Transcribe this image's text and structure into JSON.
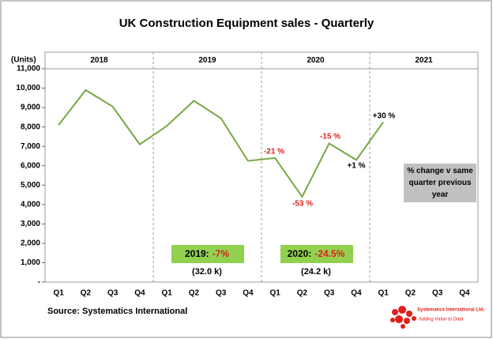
{
  "chart_data": {
    "type": "line",
    "title": "UK Construction  Equipment sales - Quarterly",
    "y_axis_label": "(Units)",
    "year_labels": [
      "2018",
      "2019",
      "2020",
      "2021"
    ],
    "categories": [
      "Q1",
      "Q2",
      "Q3",
      "Q4",
      "Q1",
      "Q2",
      "Q3",
      "Q4",
      "Q1",
      "Q2",
      "Q3",
      "Q4",
      "Q1",
      "Q2",
      "Q3",
      "Q4"
    ],
    "color": "#77a843",
    "values": [
      8100,
      9900,
      9050,
      7100,
      8050,
      9350,
      8450,
      6250,
      6400,
      4400,
      7150,
      6300,
      8250,
      null,
      null,
      null
    ],
    "ylim": [
      0,
      11000
    ],
    "yticks": [
      {
        "value": 0,
        "label": "-"
      },
      {
        "value": 1000,
        "label": "1,000"
      },
      {
        "value": 2000,
        "label": "2,000"
      },
      {
        "value": 3000,
        "label": "3,000"
      },
      {
        "value": 4000,
        "label": "4,000"
      },
      {
        "value": 5000,
        "label": "5,000"
      },
      {
        "value": 6000,
        "label": "6,000"
      },
      {
        "value": 7000,
        "label": "7,000"
      },
      {
        "value": 8000,
        "label": "8,000"
      },
      {
        "value": 9000,
        "label": "9,000"
      },
      {
        "value": 10000,
        "label": "10,000"
      },
      {
        "value": 11000,
        "label": "11,000"
      }
    ],
    "grid": false,
    "annotations": [
      {
        "text": "-21 %",
        "color": "#e0201b"
      },
      {
        "text": "-53 %",
        "color": "#e0201b"
      },
      {
        "text": "-15 %",
        "color": "#e0201b"
      },
      {
        "text": "+1 %",
        "color": "#000000"
      },
      {
        "text": "+30 %",
        "color": "#000000"
      }
    ],
    "summary_boxes": [
      {
        "label": "2019:",
        "change": "-7%",
        "total": "(32.0 k)"
      },
      {
        "label": "2020:",
        "change": "-24.5%",
        "total": "(24.2 k)"
      }
    ],
    "note": "% change v same quarter previous year",
    "source": "Source: Systematics International",
    "logo": {
      "name": "Systematics International Ltd.",
      "tagline": "Adding Value to Data"
    }
  }
}
